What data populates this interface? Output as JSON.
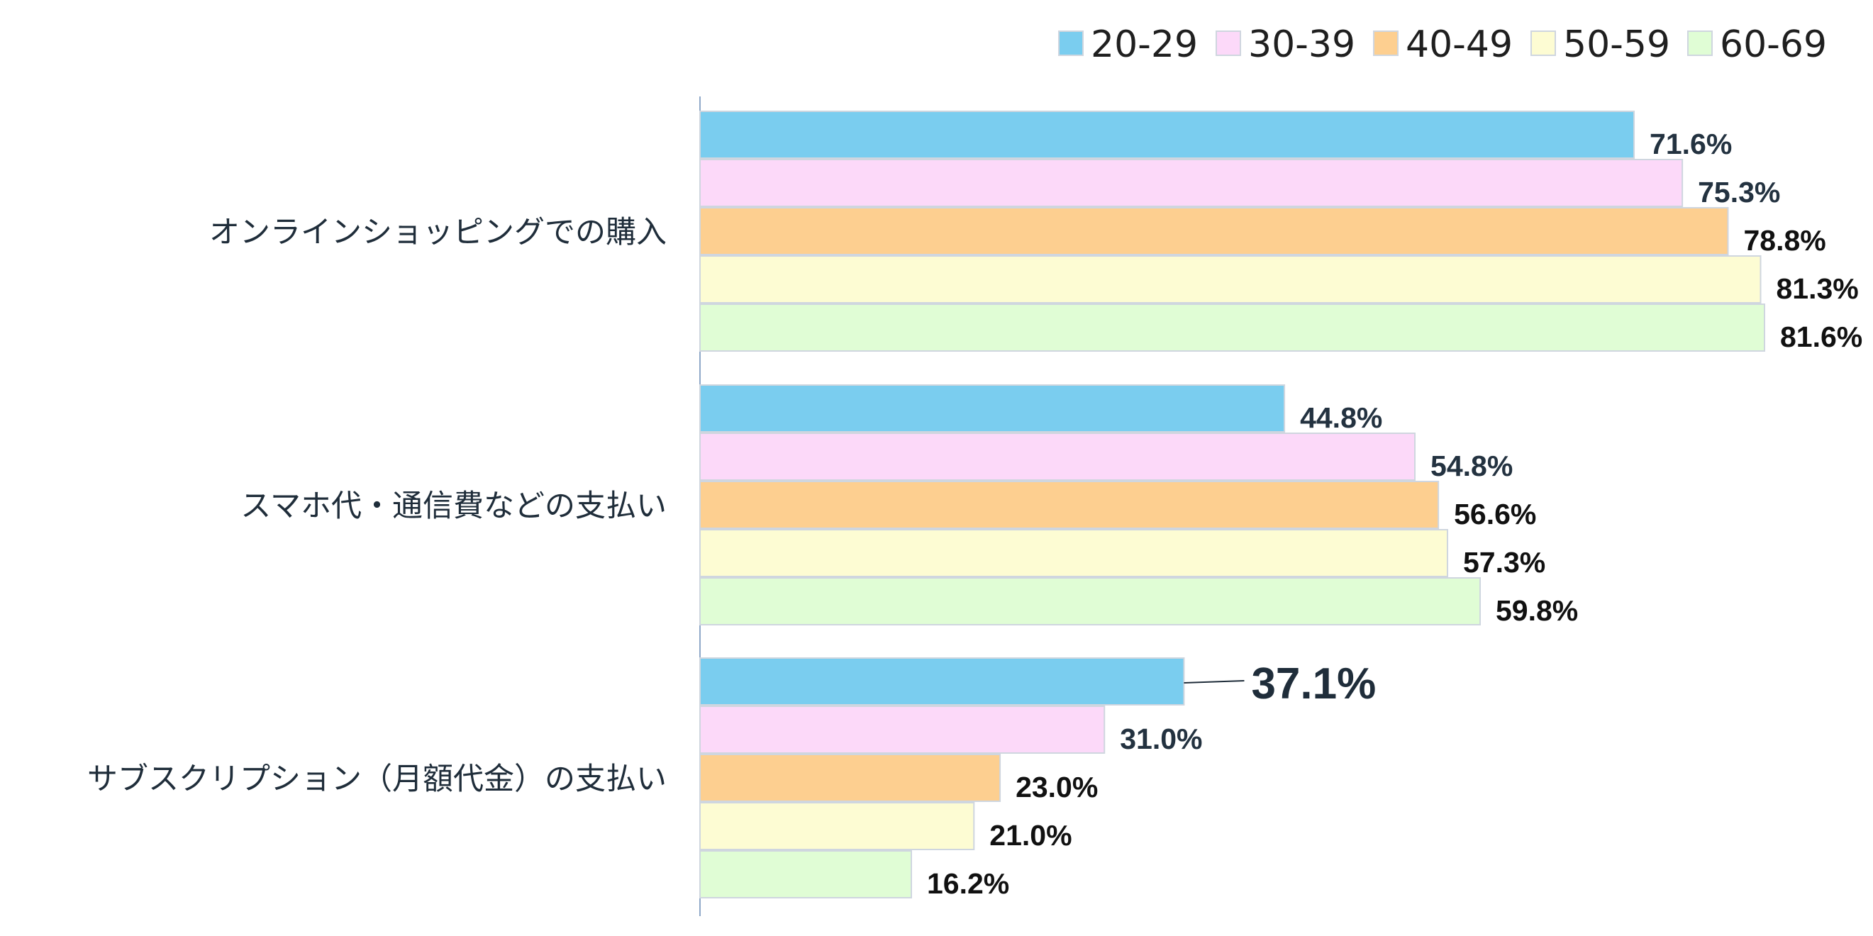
{
  "chart_data": {
    "type": "bar",
    "orientation": "horizontal",
    "categories": [
      "オンラインショッピングでの購入",
      "スマホ代・通信費などの支払い",
      "サブスクリプション（月額代金）の支払い"
    ],
    "series": [
      {
        "name": "20-29",
        "color": "#7acdef",
        "values": [
          71.6,
          44.8,
          37.1
        ],
        "labels": [
          "71.6%",
          "44.8%",
          "37.1%"
        ]
      },
      {
        "name": "30-39",
        "color": "#fcd9f9",
        "values": [
          75.3,
          54.8,
          31.0
        ],
        "labels": [
          "75.3%",
          "54.8%",
          "31.0%"
        ]
      },
      {
        "name": "40-49",
        "color": "#fdcf90",
        "values": [
          78.8,
          56.6,
          23.0
        ],
        "labels": [
          "78.8%",
          "56.6%",
          "23.0%"
        ]
      },
      {
        "name": "50-59",
        "color": "#fdfcd3",
        "values": [
          81.3,
          57.3,
          21.0
        ],
        "labels": [
          "81.3%",
          "57.3%",
          "21.0%"
        ]
      },
      {
        "name": "60-69",
        "color": "#e0fdd5",
        "values": [
          81.6,
          59.8,
          16.2
        ],
        "labels": [
          "81.6%",
          "59.8%",
          "16.2%"
        ]
      }
    ],
    "highlight": {
      "series": 0,
      "category": 2
    },
    "xlim": [
      0,
      82
    ],
    "legend_position": "top-right",
    "grid": false,
    "title": "",
    "xlabel": "",
    "ylabel": ""
  }
}
